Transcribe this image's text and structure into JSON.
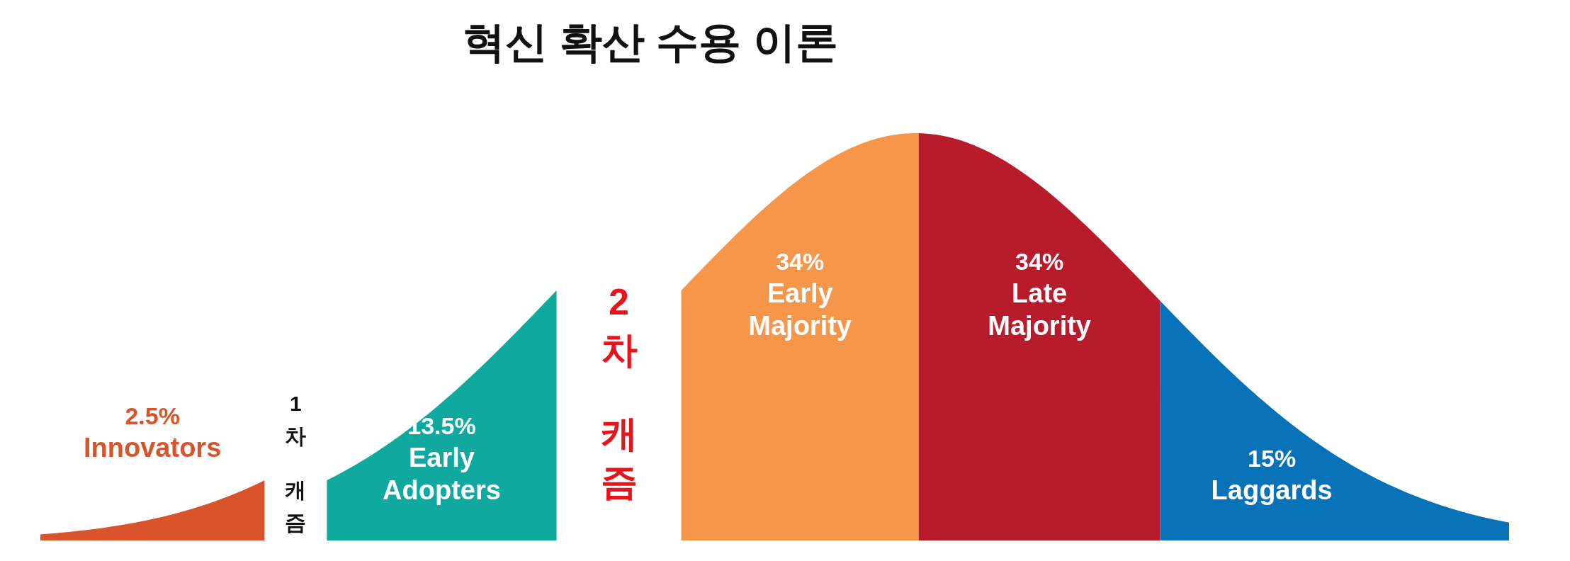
{
  "chart_data": {
    "type": "other",
    "title": "혁신 확산 수용 이론",
    "categories": [
      "Innovators",
      "Early Adopters",
      "Early Majority",
      "Late Majority",
      "Laggards"
    ],
    "values": [
      2.5,
      13.5,
      34,
      34,
      15
    ],
    "value_labels": [
      "2.5%",
      "13.5%",
      "34%",
      "34%",
      "15%"
    ],
    "colors": [
      "#d9542a",
      "#0fa99f",
      "#f5964a",
      "#b81c2c",
      "#0872b9"
    ],
    "annotations": [
      "1차 캐즘",
      "2차 캐즘"
    ]
  }
}
